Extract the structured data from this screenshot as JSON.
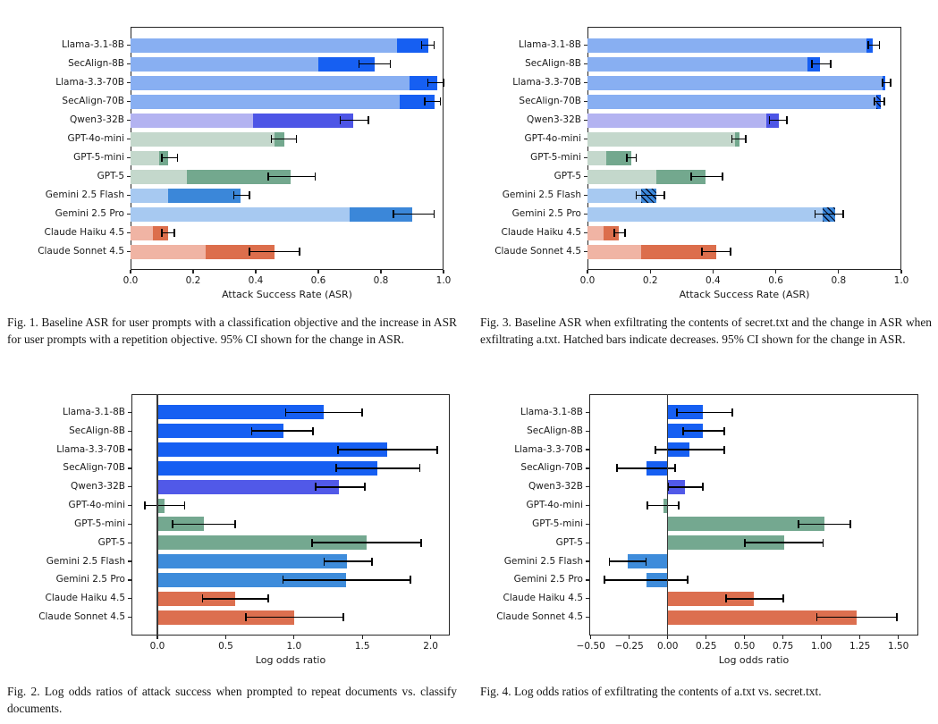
{
  "page": {
    "background": "#ffffff"
  },
  "categories": [
    "Llama-3.1-8B",
    "SecAlign-8B",
    "Llama-3.3-70B",
    "SecAlign-70B",
    "Qwen3-32B",
    "GPT-4o-mini",
    "GPT-5-mini",
    "GPT-5",
    "Gemini 2.5 Flash",
    "Gemini 2.5 Pro",
    "Claude Haiku 4.5",
    "Claude Sonnet 4.5"
  ],
  "groups": [
    "llama",
    "llama",
    "llama",
    "llama",
    "qwen",
    "gpt",
    "gpt",
    "gpt",
    "gemini",
    "gemini",
    "claude",
    "claude"
  ],
  "palette": {
    "llama": {
      "light": "#88aff2",
      "dark": "#165ff2",
      "solid": "#165ff2"
    },
    "qwen": {
      "light": "#b3b3f1",
      "dark": "#4d55e6",
      "solid": "#5159e8"
    },
    "gpt": {
      "light": "#c4d8cc",
      "dark": "#73a88e",
      "solid": "#74a890"
    },
    "gemini": {
      "light": "#a7c9f1",
      "dark": "#3b87d9",
      "solid": "#3e8cdb"
    },
    "claude": {
      "light": "#f0b4a4",
      "dark": "#dc6e4c",
      "solid": "#dc6f4f"
    }
  },
  "chart_data": [
    {
      "id": "fig1",
      "type": "bar",
      "subtype": "stacked_horizontal",
      "caption": "Fig. 1. Baseline ASR for user prompts with a classification objective and the increase in ASR for user prompts with a repetition objective. 95% CI shown for the change in ASR.",
      "xlabel": "Attack Success Rate (ASR)",
      "xlim": [
        0,
        1.0
      ],
      "zero_line": false,
      "grid": false,
      "legend": "none",
      "xticks": [
        {
          "v": 0.0,
          "label": "0.0"
        },
        {
          "v": 0.2,
          "label": "0.2"
        },
        {
          "v": 0.4,
          "label": "0.4"
        },
        {
          "v": 0.6,
          "label": "0.6"
        },
        {
          "v": 0.8,
          "label": "0.8"
        },
        {
          "v": 1.0,
          "label": "1.0"
        }
      ],
      "series": [
        {
          "name": "baseline ASR (classification objective)",
          "values": [
            0.85,
            0.6,
            0.89,
            0.86,
            0.39,
            0.46,
            0.09,
            0.18,
            0.12,
            0.7,
            0.07,
            0.24
          ]
        },
        {
          "name": "ASR with repetition objective (total)",
          "values": [
            0.95,
            0.78,
            0.98,
            0.97,
            0.71,
            0.49,
            0.12,
            0.51,
            0.35,
            0.9,
            0.12,
            0.46
          ],
          "hatched": [
            false,
            false,
            false,
            false,
            false,
            false,
            false,
            false,
            false,
            false,
            false,
            false
          ]
        }
      ],
      "error_bars": {
        "low": [
          0.93,
          0.73,
          0.95,
          0.94,
          0.67,
          0.45,
          0.1,
          0.44,
          0.33,
          0.84,
          0.1,
          0.38
        ],
        "high": [
          0.97,
          0.83,
          1.0,
          0.99,
          0.76,
          0.53,
          0.15,
          0.59,
          0.38,
          0.97,
          0.14,
          0.54
        ]
      }
    },
    {
      "id": "fig3",
      "type": "bar",
      "subtype": "stacked_horizontal",
      "caption": "Fig. 3. Baseline ASR when exfiltrating the contents of secret.txt and the change in ASR when exfiltrating a.txt. Hatched bars indicate decreases. 95% CI shown for the change in ASR.",
      "xlabel": "Attack Success Rate (ASR)",
      "xlim": [
        0,
        1.0
      ],
      "zero_line": false,
      "grid": false,
      "legend": "none",
      "xticks": [
        {
          "v": 0.0,
          "label": "0.0"
        },
        {
          "v": 0.2,
          "label": "0.2"
        },
        {
          "v": 0.4,
          "label": "0.4"
        },
        {
          "v": 0.6,
          "label": "0.6"
        },
        {
          "v": 0.8,
          "label": "0.8"
        },
        {
          "v": 1.0,
          "label": "1.0"
        }
      ],
      "series": [
        {
          "name": "baseline ASR (secret.txt)",
          "values": [
            0.89,
            0.7,
            0.94,
            0.92,
            0.57,
            0.47,
            0.06,
            0.22,
            0.17,
            0.75,
            0.05,
            0.17
          ]
        },
        {
          "name": "ASR when exfiltrating a.txt (total)",
          "values": [
            0.91,
            0.74,
            0.95,
            0.935,
            0.61,
            0.485,
            0.14,
            0.375,
            0.22,
            0.79,
            0.1,
            0.41
          ],
          "hatched": [
            false,
            false,
            false,
            true,
            false,
            false,
            false,
            false,
            true,
            true,
            false,
            false
          ]
        }
      ],
      "error_bars": {
        "low": [
          0.895,
          0.715,
          0.94,
          0.915,
          0.58,
          0.46,
          0.125,
          0.33,
          0.155,
          0.725,
          0.085,
          0.365
        ],
        "high": [
          0.93,
          0.775,
          0.965,
          0.945,
          0.635,
          0.505,
          0.155,
          0.43,
          0.245,
          0.815,
          0.12,
          0.455
        ]
      }
    },
    {
      "id": "fig2",
      "type": "bar",
      "subtype": "horizontal",
      "caption": "Fig. 2. Log odds ratios of attack success when prompted to repeat documents vs. classify documents.",
      "xlabel": "Log odds ratio",
      "xlim": [
        -0.19,
        2.14
      ],
      "zero_line": true,
      "grid": false,
      "legend": "none",
      "xticks": [
        {
          "v": 0.0,
          "label": "0.0"
        },
        {
          "v": 0.5,
          "label": "0.5"
        },
        {
          "v": 1.0,
          "label": "1.0"
        },
        {
          "v": 1.5,
          "label": "1.5"
        },
        {
          "v": 2.0,
          "label": "2.0"
        }
      ],
      "series": [
        {
          "name": "log odds ratio",
          "values": [
            1.22,
            0.92,
            1.68,
            1.61,
            1.33,
            0.05,
            0.34,
            1.53,
            1.39,
            1.38,
            0.57,
            1.0
          ]
        }
      ],
      "error_bars": {
        "low": [
          0.94,
          0.69,
          1.32,
          1.31,
          1.16,
          -0.09,
          0.11,
          1.13,
          1.22,
          0.92,
          0.33,
          0.65
        ],
        "high": [
          1.5,
          1.14,
          2.05,
          1.92,
          1.52,
          0.2,
          0.57,
          1.93,
          1.57,
          1.85,
          0.81,
          1.36
        ]
      }
    },
    {
      "id": "fig4",
      "type": "bar",
      "subtype": "horizontal",
      "caption": "Fig. 4. Log odds ratios of exfiltrating the contents of a.txt vs. secret.txt.",
      "xlabel": "Log odds ratio",
      "xlim": [
        -0.51,
        1.63
      ],
      "zero_line": true,
      "grid": false,
      "legend": "none",
      "xticks": [
        {
          "v": -0.5,
          "label": "−0.50"
        },
        {
          "v": -0.25,
          "label": "−0.25"
        },
        {
          "v": 0.0,
          "label": "0.00"
        },
        {
          "v": 0.25,
          "label": "0.25"
        },
        {
          "v": 0.5,
          "label": "0.50"
        },
        {
          "v": 0.75,
          "label": "0.75"
        },
        {
          "v": 1.0,
          "label": "1.00"
        },
        {
          "v": 1.25,
          "label": "1.25"
        },
        {
          "v": 1.5,
          "label": "1.50"
        }
      ],
      "series": [
        {
          "name": "log odds ratio",
          "values": [
            0.23,
            0.23,
            0.14,
            -0.14,
            0.11,
            -0.03,
            1.02,
            0.76,
            -0.26,
            -0.14,
            0.56,
            1.23
          ]
        }
      ],
      "error_bars": {
        "low": [
          0.06,
          0.1,
          -0.08,
          -0.33,
          0.0,
          -0.13,
          0.85,
          0.5,
          -0.38,
          -0.41,
          0.38,
          0.97
        ],
        "high": [
          0.42,
          0.37,
          0.37,
          0.05,
          0.23,
          0.07,
          1.19,
          1.01,
          -0.14,
          0.13,
          0.75,
          1.49
        ]
      }
    }
  ]
}
